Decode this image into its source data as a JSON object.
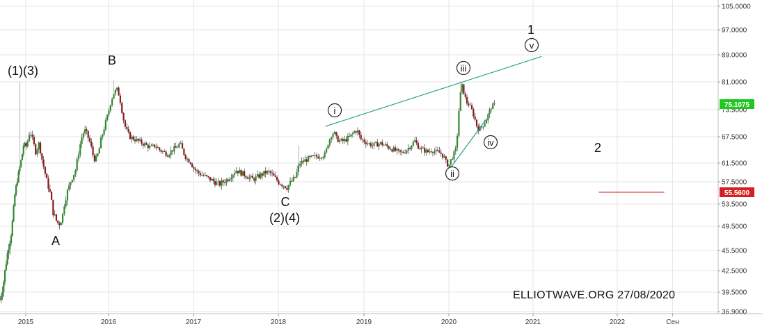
{
  "chart_data": {
    "type": "candlestick",
    "title": "",
    "xlabel": "",
    "ylabel": "",
    "ylim": [
      36.9,
      105.0
    ],
    "y_ticks": [
      "105.0000",
      "97.0000",
      "89.0000",
      "81.0000",
      "75.1075",
      "73.5000",
      "67.5000",
      "61.5000",
      "57.5000",
      "55.5600",
      "53.5000",
      "49.5000",
      "45.5000",
      "42.5000",
      "39.5000",
      "36.9000"
    ],
    "x_ticks": [
      "2015",
      "2016",
      "2017",
      "2018",
      "2019",
      "2020",
      "2021",
      "2022",
      "Сен"
    ],
    "grid": true,
    "series_close": [
      [
        2014.6,
        38.5
      ],
      [
        2014.65,
        40.5
      ],
      [
        2014.7,
        44.0
      ],
      [
        2014.73,
        46.0
      ],
      [
        2014.77,
        48.0
      ],
      [
        2014.8,
        51.0
      ],
      [
        2014.83,
        55.0
      ],
      [
        2014.87,
        58.0
      ],
      [
        2014.9,
        60.0
      ],
      [
        2014.94,
        63.0
      ],
      [
        2014.97,
        66.0
      ],
      [
        2015.0,
        65.0
      ],
      [
        2015.03,
        67.0
      ],
      [
        2015.05,
        69.0
      ],
      [
        2015.08,
        67.0
      ],
      [
        2015.12,
        64.0
      ],
      [
        2015.16,
        66.0
      ],
      [
        2015.2,
        62.0
      ],
      [
        2015.25,
        58.0
      ],
      [
        2015.3,
        55.0
      ],
      [
        2015.33,
        52.0
      ],
      [
        2015.37,
        50.5
      ],
      [
        2015.4,
        49.8
      ],
      [
        2015.44,
        51.0
      ],
      [
        2015.47,
        54.0
      ],
      [
        2015.51,
        56.0
      ],
      [
        2015.55,
        58.0
      ],
      [
        2015.6,
        60.0
      ],
      [
        2015.64,
        64.0
      ],
      [
        2015.67,
        67.0
      ],
      [
        2015.71,
        69.0
      ],
      [
        2015.74,
        68.0
      ],
      [
        2015.78,
        66.0
      ],
      [
        2015.81,
        63.5
      ],
      [
        2015.84,
        62.0
      ],
      [
        2015.88,
        64.0
      ],
      [
        2015.91,
        67.0
      ],
      [
        2015.94,
        69.0
      ],
      [
        2015.97,
        71.0
      ],
      [
        2016.0,
        73.0
      ],
      [
        2016.03,
        76.0
      ],
      [
        2016.06,
        78.0
      ],
      [
        2016.1,
        79.0
      ],
      [
        2016.13,
        77.0
      ],
      [
        2016.16,
        73.0
      ],
      [
        2016.19,
        70.0
      ],
      [
        2016.22,
        68.5
      ],
      [
        2016.25,
        67.5
      ],
      [
        2016.3,
        67.0
      ],
      [
        2016.35,
        66.5
      ],
      [
        2016.4,
        66.0
      ],
      [
        2016.45,
        65.5
      ],
      [
        2016.5,
        65.0
      ],
      [
        2016.55,
        65.5
      ],
      [
        2016.6,
        64.5
      ],
      [
        2016.65,
        64.0
      ],
      [
        2016.7,
        63.5
      ],
      [
        2016.75,
        64.5
      ],
      [
        2016.8,
        65.0
      ],
      [
        2016.84,
        66.0
      ],
      [
        2016.88,
        64.0
      ],
      [
        2016.92,
        62.5
      ],
      [
        2016.96,
        62.0
      ],
      [
        2017.0,
        60.5
      ],
      [
        2017.05,
        59.5
      ],
      [
        2017.1,
        59.0
      ],
      [
        2017.15,
        58.5
      ],
      [
        2017.2,
        58.0
      ],
      [
        2017.25,
        57.5
      ],
      [
        2017.3,
        57.0
      ],
      [
        2017.35,
        57.5
      ],
      [
        2017.4,
        58.0
      ],
      [
        2017.45,
        59.0
      ],
      [
        2017.5,
        60.0
      ],
      [
        2017.55,
        59.5
      ],
      [
        2017.6,
        59.0
      ],
      [
        2017.65,
        58.5
      ],
      [
        2017.7,
        58.0
      ],
      [
        2017.75,
        58.5
      ],
      [
        2017.8,
        59.0
      ],
      [
        2017.85,
        59.5
      ],
      [
        2017.9,
        59.5
      ],
      [
        2017.95,
        58.5
      ],
      [
        2018.0,
        57.5
      ],
      [
        2018.05,
        57.0
      ],
      [
        2018.1,
        56.5
      ],
      [
        2018.15,
        57.5
      ],
      [
        2018.2,
        58.5
      ],
      [
        2018.25,
        61.5
      ],
      [
        2018.3,
        62.0
      ],
      [
        2018.35,
        62.5
      ],
      [
        2018.4,
        62.8
      ],
      [
        2018.45,
        63.0
      ],
      [
        2018.5,
        63.2
      ],
      [
        2018.55,
        63.5
      ],
      [
        2018.58,
        66.0
      ],
      [
        2018.62,
        68.0
      ],
      [
        2018.65,
        68.5
      ],
      [
        2018.68,
        67.0
      ],
      [
        2018.72,
        66.5
      ],
      [
        2018.76,
        66.5
      ],
      [
        2018.8,
        67.0
      ],
      [
        2018.84,
        67.5
      ],
      [
        2018.88,
        68.5
      ],
      [
        2018.92,
        69.0
      ],
      [
        2018.96,
        67.0
      ],
      [
        2019.0,
        66.5
      ],
      [
        2019.05,
        66.0
      ],
      [
        2019.1,
        65.5
      ],
      [
        2019.15,
        65.8
      ],
      [
        2019.2,
        66.0
      ],
      [
        2019.25,
        65.5
      ],
      [
        2019.3,
        65.0
      ],
      [
        2019.35,
        64.5
      ],
      [
        2019.4,
        64.0
      ],
      [
        2019.45,
        63.8
      ],
      [
        2019.5,
        64.5
      ],
      [
        2019.55,
        65.5
      ],
      [
        2019.6,
        66.5
      ],
      [
        2019.65,
        65.0
      ],
      [
        2019.7,
        64.5
      ],
      [
        2019.75,
        64.0
      ],
      [
        2019.8,
        64.5
      ],
      [
        2019.85,
        64.0
      ],
      [
        2019.9,
        63.8
      ],
      [
        2019.94,
        63.0
      ],
      [
        2019.97,
        61.5
      ],
      [
        2020.0,
        61.0
      ],
      [
        2020.03,
        62.5
      ],
      [
        2020.06,
        63.5
      ],
      [
        2020.09,
        65.0
      ],
      [
        2020.11,
        71.0
      ],
      [
        2020.13,
        76.0
      ],
      [
        2020.15,
        80.5
      ],
      [
        2020.18,
        78.0
      ],
      [
        2020.21,
        75.5
      ],
      [
        2020.24,
        75.0
      ],
      [
        2020.27,
        73.5
      ],
      [
        2020.3,
        72.0
      ],
      [
        2020.33,
        70.0
      ],
      [
        2020.36,
        69.0
      ],
      [
        2020.39,
        69.8
      ],
      [
        2020.42,
        70.5
      ],
      [
        2020.45,
        71.5
      ],
      [
        2020.48,
        73.0
      ],
      [
        2020.51,
        74.5
      ],
      [
        2020.55,
        75.1
      ]
    ],
    "wicks": [
      [
        2014.91,
        81.0
      ],
      [
        2016.06,
        81.5
      ],
      [
        2018.22,
        61.0
      ],
      [
        2018.24,
        65.5
      ],
      [
        2020.14,
        81.2
      ]
    ],
    "trendlines": [
      {
        "from": [
          2018.55,
          69.8
        ],
        "to": [
          2021.1,
          88.5
        ],
        "color": "#1a9c8a"
      },
      {
        "from": [
          2020.0,
          60.0
        ],
        "to": [
          2020.45,
          71.5
        ],
        "color": "#1a9c8a"
      },
      {
        "from": [
          2021.78,
          55.56
        ],
        "to": [
          2022.57,
          55.56
        ],
        "color": "#cc1f1f"
      }
    ],
    "last_price": "75.1075",
    "target_price": "55.5600",
    "wave_labels": {
      "l_1_3": "(1)(3)",
      "l_B": "B",
      "l_A": "A",
      "l_C": "C",
      "l_2_4": "(2)(4)",
      "l_1": "1",
      "l_2": "2"
    },
    "roman_labels": {
      "r_i": "i",
      "r_ii": "ii",
      "r_iii": "iii",
      "r_iv": "iv",
      "r_v": "v"
    },
    "watermark": "ELLIOTWAVE.ORG  27/08/2020",
    "colors": {
      "up": "#2e8b2e",
      "down": "#8b1a1a",
      "trend": "#1a9c8a",
      "target": "#cc1f1f",
      "last_badge": "#1ec81e",
      "grid": "#e6e6e6"
    }
  }
}
